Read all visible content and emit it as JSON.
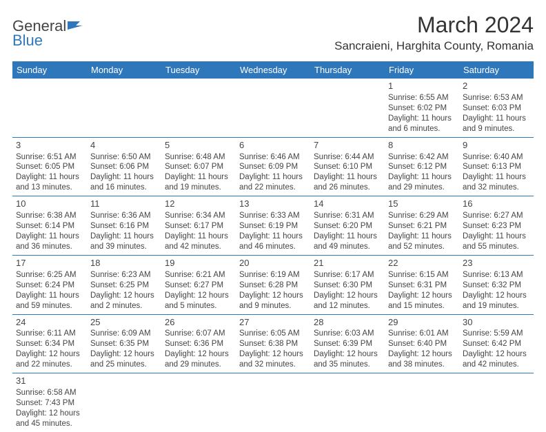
{
  "logo": {
    "text1": "General",
    "text2": "Blue"
  },
  "title": "March 2024",
  "location": "Sancraieni, Harghita County, Romania",
  "weekdays": [
    "Sunday",
    "Monday",
    "Tuesday",
    "Wednesday",
    "Thursday",
    "Friday",
    "Saturday"
  ],
  "colors": {
    "header_bg": "#2f77bb",
    "header_text": "#ffffff",
    "cell_border": "#2f77bb",
    "text": "#333333",
    "background": "#ffffff"
  },
  "typography": {
    "title_fontsize": 32,
    "location_fontsize": 17,
    "weekday_fontsize": 13,
    "daynum_fontsize": 13,
    "body_fontsize": 11.5
  },
  "rows": [
    [
      {
        "day": "",
        "lines": []
      },
      {
        "day": "",
        "lines": []
      },
      {
        "day": "",
        "lines": []
      },
      {
        "day": "",
        "lines": []
      },
      {
        "day": "",
        "lines": []
      },
      {
        "day": "1",
        "lines": [
          "Sunrise: 6:55 AM",
          "Sunset: 6:02 PM",
          "Daylight: 11 hours and 6 minutes."
        ]
      },
      {
        "day": "2",
        "lines": [
          "Sunrise: 6:53 AM",
          "Sunset: 6:03 PM",
          "Daylight: 11 hours and 9 minutes."
        ]
      }
    ],
    [
      {
        "day": "3",
        "lines": [
          "Sunrise: 6:51 AM",
          "Sunset: 6:05 PM",
          "Daylight: 11 hours and 13 minutes."
        ]
      },
      {
        "day": "4",
        "lines": [
          "Sunrise: 6:50 AM",
          "Sunset: 6:06 PM",
          "Daylight: 11 hours and 16 minutes."
        ]
      },
      {
        "day": "5",
        "lines": [
          "Sunrise: 6:48 AM",
          "Sunset: 6:07 PM",
          "Daylight: 11 hours and 19 minutes."
        ]
      },
      {
        "day": "6",
        "lines": [
          "Sunrise: 6:46 AM",
          "Sunset: 6:09 PM",
          "Daylight: 11 hours and 22 minutes."
        ]
      },
      {
        "day": "7",
        "lines": [
          "Sunrise: 6:44 AM",
          "Sunset: 6:10 PM",
          "Daylight: 11 hours and 26 minutes."
        ]
      },
      {
        "day": "8",
        "lines": [
          "Sunrise: 6:42 AM",
          "Sunset: 6:12 PM",
          "Daylight: 11 hours and 29 minutes."
        ]
      },
      {
        "day": "9",
        "lines": [
          "Sunrise: 6:40 AM",
          "Sunset: 6:13 PM",
          "Daylight: 11 hours and 32 minutes."
        ]
      }
    ],
    [
      {
        "day": "10",
        "lines": [
          "Sunrise: 6:38 AM",
          "Sunset: 6:14 PM",
          "Daylight: 11 hours and 36 minutes."
        ]
      },
      {
        "day": "11",
        "lines": [
          "Sunrise: 6:36 AM",
          "Sunset: 6:16 PM",
          "Daylight: 11 hours and 39 minutes."
        ]
      },
      {
        "day": "12",
        "lines": [
          "Sunrise: 6:34 AM",
          "Sunset: 6:17 PM",
          "Daylight: 11 hours and 42 minutes."
        ]
      },
      {
        "day": "13",
        "lines": [
          "Sunrise: 6:33 AM",
          "Sunset: 6:19 PM",
          "Daylight: 11 hours and 46 minutes."
        ]
      },
      {
        "day": "14",
        "lines": [
          "Sunrise: 6:31 AM",
          "Sunset: 6:20 PM",
          "Daylight: 11 hours and 49 minutes."
        ]
      },
      {
        "day": "15",
        "lines": [
          "Sunrise: 6:29 AM",
          "Sunset: 6:21 PM",
          "Daylight: 11 hours and 52 minutes."
        ]
      },
      {
        "day": "16",
        "lines": [
          "Sunrise: 6:27 AM",
          "Sunset: 6:23 PM",
          "Daylight: 11 hours and 55 minutes."
        ]
      }
    ],
    [
      {
        "day": "17",
        "lines": [
          "Sunrise: 6:25 AM",
          "Sunset: 6:24 PM",
          "Daylight: 11 hours and 59 minutes."
        ]
      },
      {
        "day": "18",
        "lines": [
          "Sunrise: 6:23 AM",
          "Sunset: 6:25 PM",
          "Daylight: 12 hours and 2 minutes."
        ]
      },
      {
        "day": "19",
        "lines": [
          "Sunrise: 6:21 AM",
          "Sunset: 6:27 PM",
          "Daylight: 12 hours and 5 minutes."
        ]
      },
      {
        "day": "20",
        "lines": [
          "Sunrise: 6:19 AM",
          "Sunset: 6:28 PM",
          "Daylight: 12 hours and 9 minutes."
        ]
      },
      {
        "day": "21",
        "lines": [
          "Sunrise: 6:17 AM",
          "Sunset: 6:30 PM",
          "Daylight: 12 hours and 12 minutes."
        ]
      },
      {
        "day": "22",
        "lines": [
          "Sunrise: 6:15 AM",
          "Sunset: 6:31 PM",
          "Daylight: 12 hours and 15 minutes."
        ]
      },
      {
        "day": "23",
        "lines": [
          "Sunrise: 6:13 AM",
          "Sunset: 6:32 PM",
          "Daylight: 12 hours and 19 minutes."
        ]
      }
    ],
    [
      {
        "day": "24",
        "lines": [
          "Sunrise: 6:11 AM",
          "Sunset: 6:34 PM",
          "Daylight: 12 hours and 22 minutes."
        ]
      },
      {
        "day": "25",
        "lines": [
          "Sunrise: 6:09 AM",
          "Sunset: 6:35 PM",
          "Daylight: 12 hours and 25 minutes."
        ]
      },
      {
        "day": "26",
        "lines": [
          "Sunrise: 6:07 AM",
          "Sunset: 6:36 PM",
          "Daylight: 12 hours and 29 minutes."
        ]
      },
      {
        "day": "27",
        "lines": [
          "Sunrise: 6:05 AM",
          "Sunset: 6:38 PM",
          "Daylight: 12 hours and 32 minutes."
        ]
      },
      {
        "day": "28",
        "lines": [
          "Sunrise: 6:03 AM",
          "Sunset: 6:39 PM",
          "Daylight: 12 hours and 35 minutes."
        ]
      },
      {
        "day": "29",
        "lines": [
          "Sunrise: 6:01 AM",
          "Sunset: 6:40 PM",
          "Daylight: 12 hours and 38 minutes."
        ]
      },
      {
        "day": "30",
        "lines": [
          "Sunrise: 5:59 AM",
          "Sunset: 6:42 PM",
          "Daylight: 12 hours and 42 minutes."
        ]
      }
    ],
    [
      {
        "day": "31",
        "lines": [
          "Sunrise: 6:58 AM",
          "Sunset: 7:43 PM",
          "Daylight: 12 hours and 45 minutes."
        ]
      },
      {
        "day": "",
        "lines": []
      },
      {
        "day": "",
        "lines": []
      },
      {
        "day": "",
        "lines": []
      },
      {
        "day": "",
        "lines": []
      },
      {
        "day": "",
        "lines": []
      },
      {
        "day": "",
        "lines": []
      }
    ]
  ]
}
